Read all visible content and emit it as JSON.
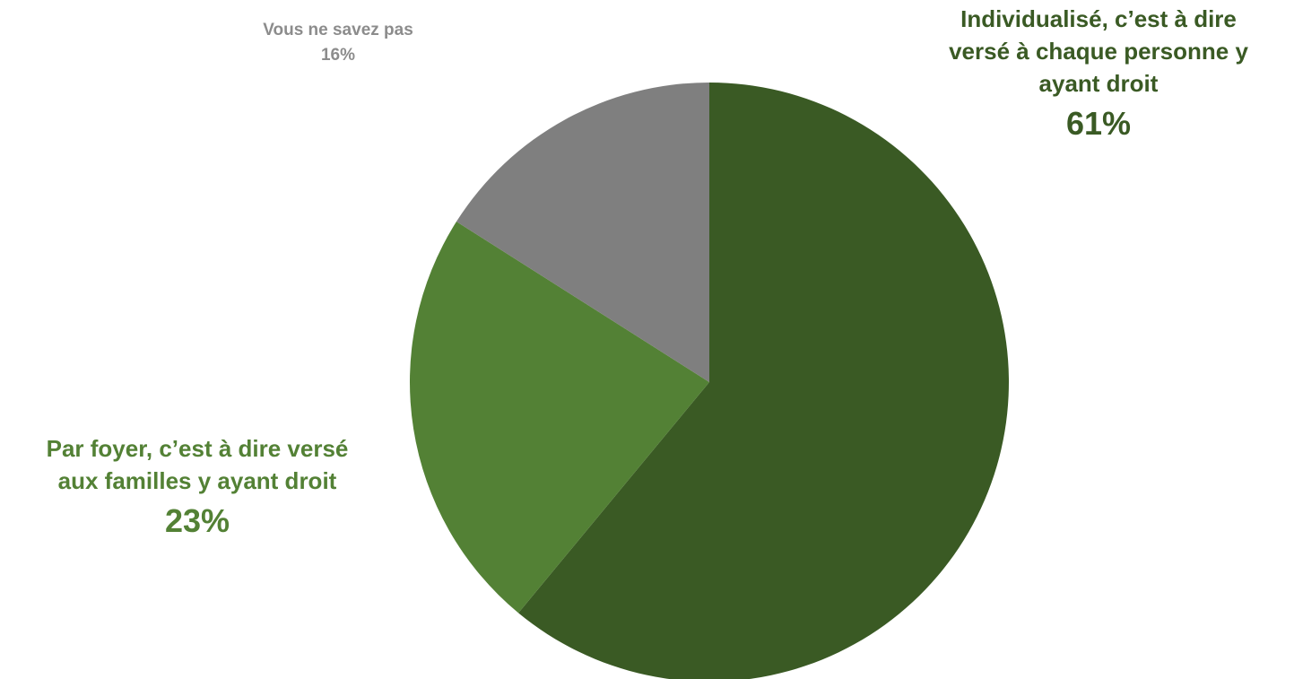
{
  "chart_data": {
    "type": "pie",
    "slices": [
      {
        "label": "Individualisé, c’est à dire versé à chaque personne y ayant droit",
        "label_lines": [
          "Individualisé, c’est à dire",
          "versé à chaque personne y",
          "ayant droit"
        ],
        "value": 61,
        "value_label": "61%",
        "color": "#3a5a24"
      },
      {
        "label": "Par foyer, c’est à dire versé aux familles y ayant droit",
        "label_lines": [
          "Par foyer, c’est à dire versé",
          "aux familles y ayant droit"
        ],
        "value": 23,
        "value_label": "23%",
        "color": "#538135"
      },
      {
        "label": "Vous ne savez pas",
        "label_lines": [
          "Vous ne savez pas"
        ],
        "value": 16,
        "value_label": "16%",
        "color": "#7f7f7f"
      }
    ],
    "start_angle": "12 o'clock",
    "direction": "clockwise"
  },
  "colors": {
    "label_individualise": "#3a5a24",
    "label_foyer": "#538135",
    "label_nsp": "#8c8c8c",
    "background": "#ffffff"
  }
}
